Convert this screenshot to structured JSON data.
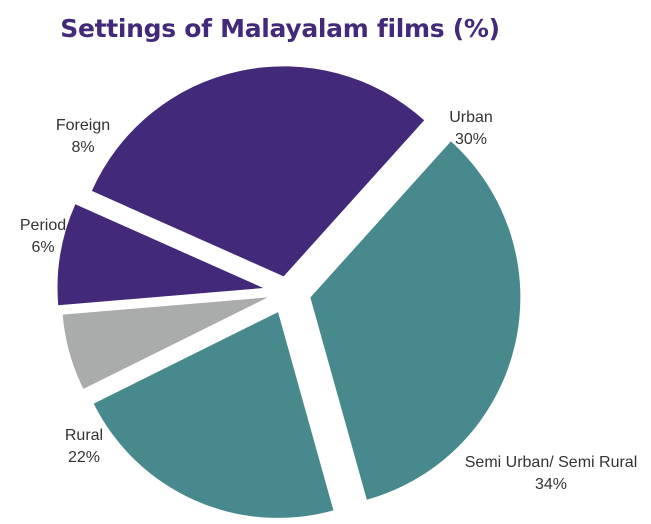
{
  "chart_data": {
    "type": "pie",
    "title": "Settings of Malayalam films (%)",
    "categories": [
      "Urban",
      "Semi Urban/ Semi Rural",
      "Rural",
      "Period",
      "Foreign"
    ],
    "values": [
      30,
      34,
      22,
      6,
      8
    ],
    "value_labels": [
      "30%",
      "34%",
      "22%",
      "6%",
      "8%"
    ],
    "colors": [
      "#42297a",
      "#47898c",
      "#47898c",
      "#a9acab",
      "#42297a"
    ],
    "exploded": true,
    "legend": "none"
  }
}
